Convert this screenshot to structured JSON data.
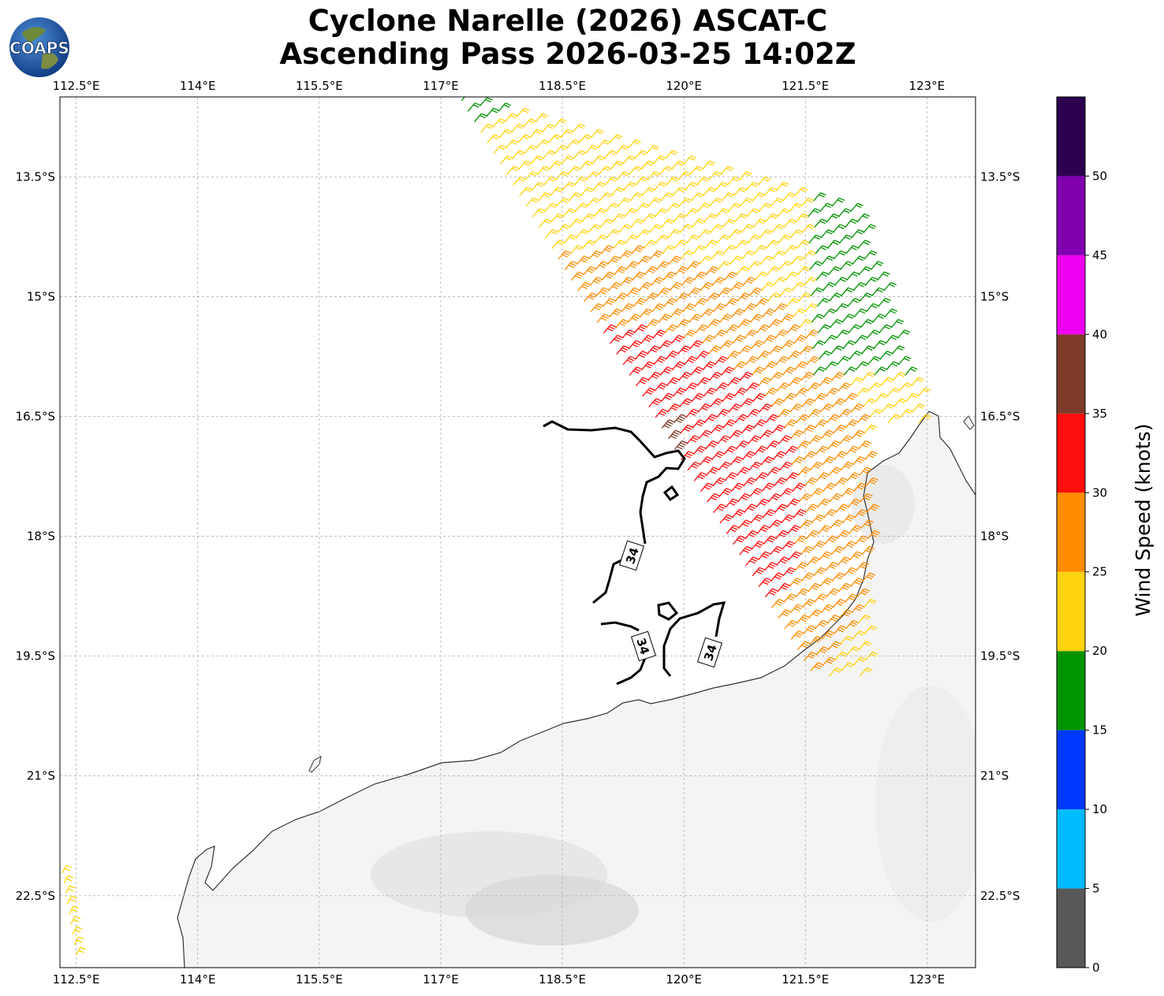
{
  "title": {
    "line1": "Cyclone Narelle (2026) ASCAT-C",
    "line2": "Ascending Pass 2026-03-25 14:02Z"
  },
  "logo": {
    "text": "COAPS",
    "icon": "globe-logo-icon"
  },
  "map": {
    "lon_range": [
      112.3,
      123.6
    ],
    "lat_range": [
      -23.4,
      -12.5
    ],
    "lon_ticks": [
      "112.5°E",
      "114°E",
      "115.5°E",
      "117°E",
      "118.5°E",
      "120°E",
      "121.5°E",
      "123°E"
    ],
    "lon_tick_values": [
      112.5,
      114,
      115.5,
      117,
      118.5,
      120,
      121.5,
      123
    ],
    "lat_ticks": [
      "13.5°S",
      "15°S",
      "16.5°S",
      "18°S",
      "19.5°S",
      "21°S",
      "22.5°S"
    ],
    "lat_tick_values": [
      -13.5,
      -15,
      -16.5,
      -18,
      -19.5,
      -21,
      -22.5
    ],
    "grid": true,
    "contour_value": 34,
    "contour_labels": [
      "34",
      "34",
      "34"
    ],
    "land": "Western Australia (Pilbara coast)"
  },
  "colorbar": {
    "label": "Wind Speed (knots)",
    "ticks": [
      "0",
      "5",
      "10",
      "15",
      "20",
      "25",
      "30",
      "35",
      "40",
      "45",
      "50"
    ],
    "bins": [
      {
        "range": [
          0,
          5
        ],
        "color": "#585858"
      },
      {
        "range": [
          5,
          10
        ],
        "color": "#00bbff"
      },
      {
        "range": [
          10,
          15
        ],
        "color": "#0038ff"
      },
      {
        "range": [
          15,
          20
        ],
        "color": "#009400"
      },
      {
        "range": [
          20,
          25
        ],
        "color": "#ffd30e"
      },
      {
        "range": [
          25,
          30
        ],
        "color": "#ff8c00"
      },
      {
        "range": [
          30,
          35
        ],
        "color": "#ff0e0e"
      },
      {
        "range": [
          35,
          40
        ],
        "color": "#7d3a28"
      },
      {
        "range": [
          40,
          45
        ],
        "color": "#f000f0"
      },
      {
        "range": [
          45,
          50
        ],
        "color": "#8000b0"
      },
      {
        "range": [
          50,
          55
        ],
        "color": "#2c004f"
      }
    ]
  }
}
